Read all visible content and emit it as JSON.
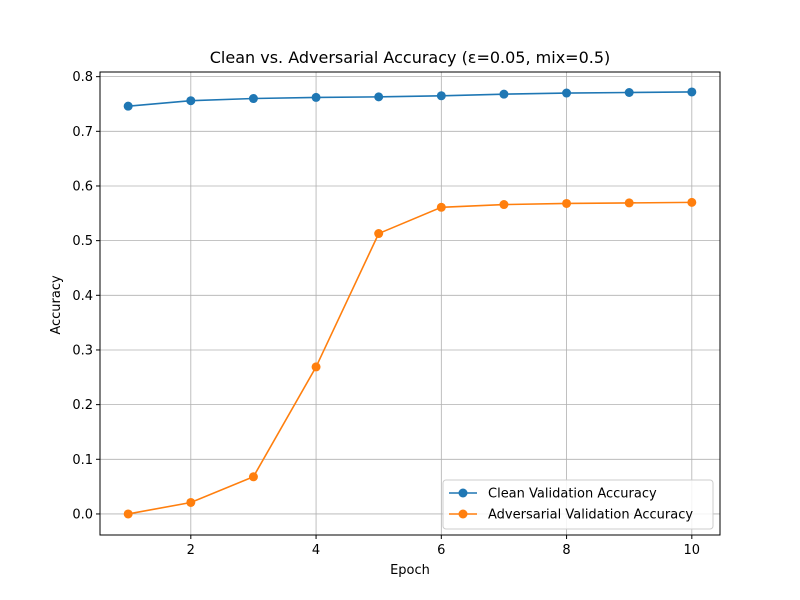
{
  "chart_data": {
    "type": "line",
    "title": "Clean vs. Adversarial Accuracy (ε=0.05, mix=0.5)",
    "xlabel": "Epoch",
    "ylabel": "Accuracy",
    "xlim": [
      0.55,
      10.45
    ],
    "ylim": [
      -0.0385,
      0.8085
    ],
    "xticks": [
      2,
      4,
      6,
      8,
      10
    ],
    "yticks": [
      0.0,
      0.1,
      0.2,
      0.3,
      0.4,
      0.5,
      0.6,
      0.7,
      0.8
    ],
    "ytick_labels": [
      "0.0",
      "0.1",
      "0.2",
      "0.3",
      "0.4",
      "0.5",
      "0.6",
      "0.7",
      "0.8"
    ],
    "grid": true,
    "legend_position": "lower-right",
    "x": [
      1,
      2,
      3,
      4,
      5,
      6,
      7,
      8,
      9,
      10
    ],
    "series": [
      {
        "name": "Clean Validation Accuracy",
        "color": "#1f77b4",
        "values": [
          0.746,
          0.756,
          0.76,
          0.762,
          0.763,
          0.765,
          0.768,
          0.77,
          0.771,
          0.772
        ]
      },
      {
        "name": "Adversarial Validation Accuracy",
        "color": "#ff7f0e",
        "values": [
          0.0,
          0.021,
          0.068,
          0.269,
          0.513,
          0.561,
          0.566,
          0.568,
          0.569,
          0.57
        ]
      }
    ]
  }
}
